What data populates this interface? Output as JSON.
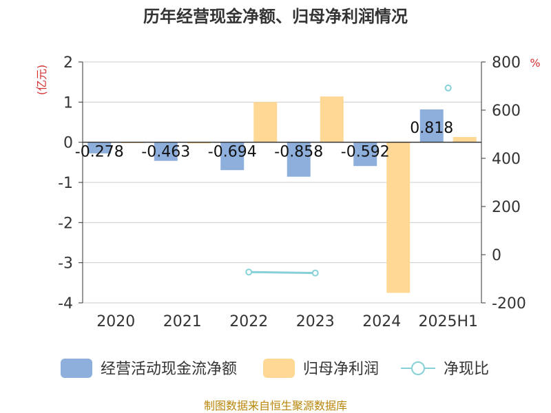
{
  "chart_data": {
    "type": "bar",
    "title": "历年经营现金净额、归母净利润情况",
    "categories": [
      "2020",
      "2021",
      "2022",
      "2023",
      "2024",
      "2025H1"
    ],
    "left_axis": {
      "unit": "(亿元)",
      "ylim": [
        -4,
        2
      ],
      "ticks": [
        2,
        1,
        0,
        -1,
        -2,
        -3,
        -4
      ]
    },
    "right_axis": {
      "unit": "%",
      "ylim": [
        -200,
        800
      ],
      "ticks": [
        800,
        600,
        400,
        200,
        0,
        -200
      ]
    },
    "series": [
      {
        "name": "经营活动现金流净额",
        "type": "bar",
        "axis": "left",
        "color": "#8eafdb",
        "values": [
          -0.278,
          -0.463,
          -0.694,
          -0.858,
          -0.592,
          0.818
        ],
        "labels": [
          "-0.278",
          "-0.463",
          "-0.694",
          "-0.858",
          "-0.592",
          "0.818"
        ]
      },
      {
        "name": "归母净利润",
        "type": "bar",
        "axis": "left",
        "color": "#fed894",
        "values": [
          -0.02,
          -0.03,
          1.0,
          1.14,
          -3.75,
          0.13
        ]
      },
      {
        "name": "净现比",
        "type": "line",
        "axis": "right",
        "color": "#86d1d8",
        "values": [
          null,
          null,
          -72,
          -76,
          null,
          692
        ]
      }
    ],
    "grid": true,
    "legend_position": "bottom"
  },
  "footer": {
    "source": "制图数据来自恒生聚源数据库"
  }
}
